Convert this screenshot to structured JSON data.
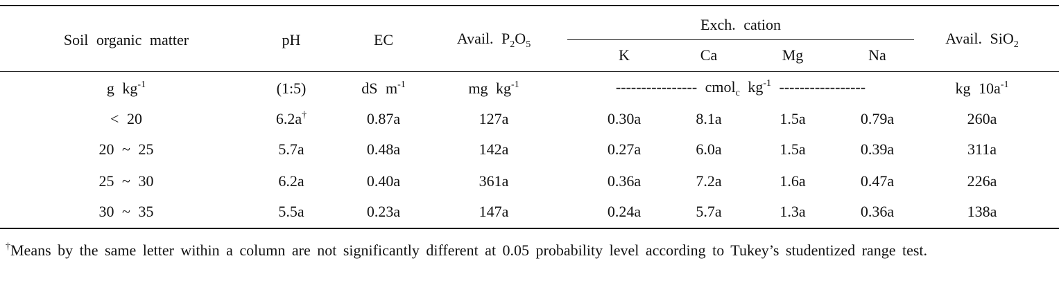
{
  "header": {
    "columns": [
      [
        {
          "text": "Soil organic matter"
        }
      ],
      [
        {
          "text": "pH"
        }
      ],
      [
        {
          "text": "EC"
        }
      ],
      [
        {
          "text": "Avail. P"
        },
        {
          "sub": "2"
        },
        {
          "text": "O"
        },
        {
          "sub": "5"
        }
      ],
      [
        {
          "text": "Avail. SiO"
        },
        {
          "sub": "2"
        }
      ]
    ],
    "group": "Exch. cation",
    "subcolumns": [
      "K",
      "Ca",
      "Mg",
      "Na"
    ]
  },
  "units": [
    [
      {
        "text": "g kg"
      },
      {
        "sup": "-1"
      }
    ],
    [
      {
        "text": "(1:5)"
      }
    ],
    [
      {
        "text": "dS m"
      },
      {
        "sup": "-1"
      }
    ],
    [
      {
        "text": "mg kg"
      },
      {
        "sup": "-1"
      }
    ],
    [
      {
        "text": "---------------- cmol"
      },
      {
        "sub": "c"
      },
      {
        "text": " kg"
      },
      {
        "sup": "-1"
      },
      {
        "text": " -----------------"
      }
    ],
    [
      {
        "text": "kg 10a"
      },
      {
        "sup": "-1"
      }
    ]
  ],
  "rows": [
    [
      "< 20",
      [
        {
          "text": "6.2a"
        },
        {
          "sup": "†"
        }
      ],
      "0.87a",
      "127a",
      "0.30a",
      "8.1a",
      "1.5a",
      "0.79a",
      "260a"
    ],
    [
      "20 ~ 25",
      "5.7a",
      "0.48a",
      "142a",
      "0.27a",
      "6.0a",
      "1.5a",
      "0.39a",
      "311a"
    ],
    [
      "25 ~ 30",
      "6.2a",
      "0.40a",
      "361a",
      "0.36a",
      "7.2a",
      "1.6a",
      "0.47a",
      "226a"
    ],
    [
      "30 ~ 35",
      "5.5a",
      "0.23a",
      "147a",
      "0.24a",
      "5.7a",
      "1.3a",
      "0.36a",
      "138a"
    ]
  ],
  "footnote": [
    {
      "sup": "†"
    },
    {
      "text": "Means by the same letter within a column are not significantly different at 0.05 probability level according to Tukey’s studentized range test."
    }
  ]
}
